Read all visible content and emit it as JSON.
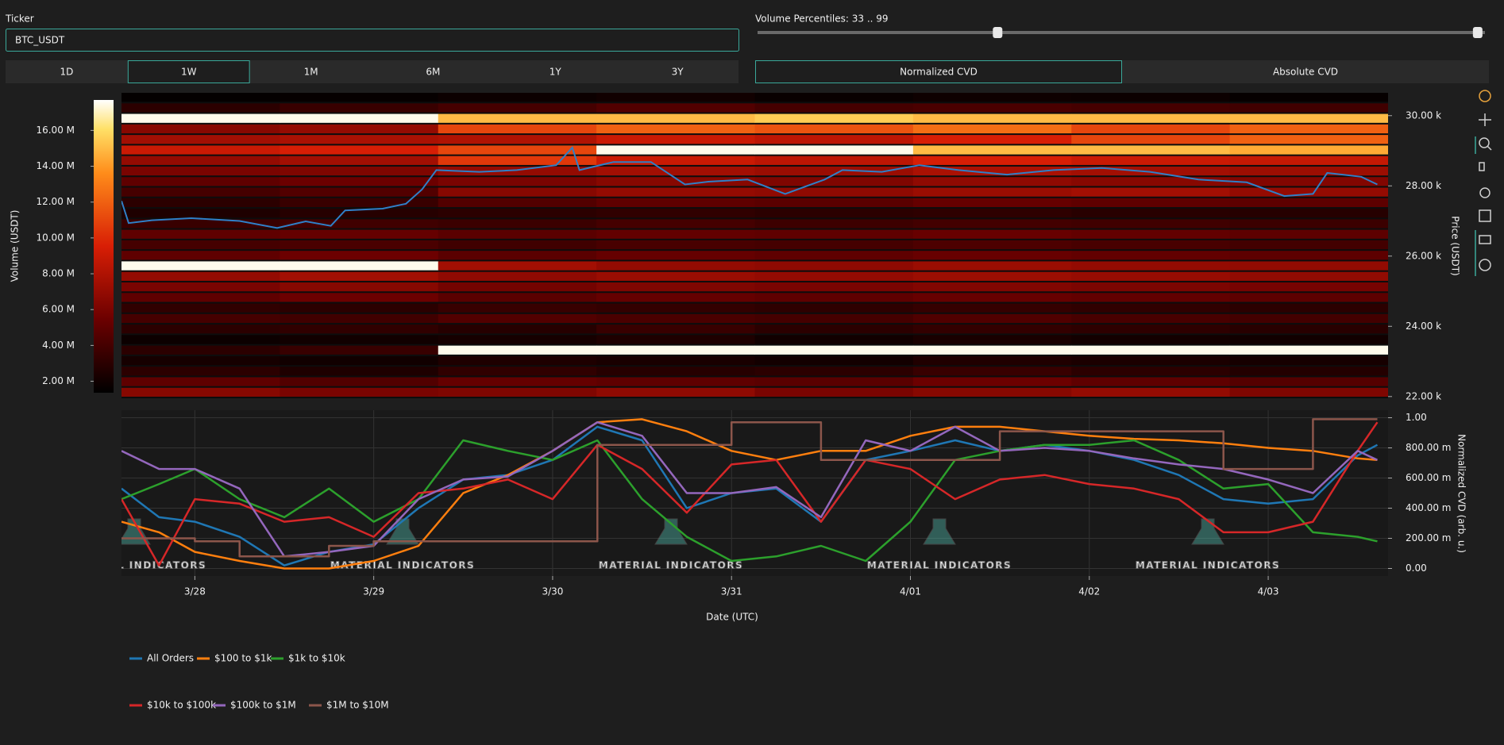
{
  "controls": {
    "ticker_label": "Ticker",
    "ticker_value": "BTC_USDT",
    "timeframes": [
      "1D",
      "1W",
      "1M",
      "6M",
      "1Y",
      "3Y"
    ],
    "active_timeframe_index": 1,
    "percentile_label": "Volume Percentiles: 33 .. 99",
    "percentile_slider": {
      "range": [
        0,
        100
      ],
      "values": [
        33,
        99
      ]
    },
    "cvd_tabs": [
      "Normalized CVD",
      "Absolute CVD"
    ],
    "active_cvd_tab_index": 0
  },
  "chart_data": [
    {
      "type": "heatmap",
      "x_bins": [
        -0.41,
        0.475,
        1.36,
        2.245,
        3.13,
        4.015,
        4.9,
        5.785,
        6.67
      ],
      "y_bins": [
        21950,
        22250,
        22550,
        22850,
        23150,
        23450,
        23750,
        24050,
        24350,
        24650,
        24950,
        25250,
        25550,
        25850,
        26150,
        26450,
        26750,
        27050,
        27350,
        27650,
        27950,
        28250,
        28550,
        28850,
        29150,
        29450,
        29750,
        30050,
        30350,
        30650
      ],
      "z": [
        [
          6500000,
          6000000,
          6200000,
          6800000,
          6000000,
          6500000,
          7000000,
          6200000
        ],
        [
          5000000,
          4500000,
          5200000,
          5000000,
          4800000,
          5500000,
          5000000,
          4600000
        ],
        [
          3000000,
          2500000,
          3200000,
          2800000,
          3000000,
          3500000,
          3000000,
          2700000
        ],
        [
          2200000,
          2000000,
          2500000,
          2300000,
          2100000,
          2600000,
          2400000,
          2200000
        ],
        [
          3000000,
          3500000,
          17500000,
          17500000,
          17500000,
          17500000,
          17500000,
          17500000
        ],
        [
          1800000,
          2000000,
          2200000,
          2500000,
          2000000,
          2300000,
          2100000,
          2000000
        ],
        [
          3000000,
          3200000,
          2800000,
          3500000,
          3000000,
          3300000,
          3100000,
          2900000
        ],
        [
          4000000,
          3800000,
          4500000,
          4200000,
          4000000,
          4400000,
          4100000,
          3900000
        ],
        [
          3200000,
          3000000,
          3500000,
          3300000,
          3100000,
          3400000,
          3200000,
          3000000
        ],
        [
          5000000,
          5500000,
          4800000,
          5200000,
          5000000,
          5300000,
          5100000,
          4900000
        ],
        [
          6000000,
          6500000,
          5800000,
          6200000,
          6000000,
          6300000,
          6100000,
          5900000
        ],
        [
          7000000,
          7500000,
          6800000,
          7200000,
          7000000,
          7300000,
          7100000,
          6900000
        ],
        [
          17500000,
          17500000,
          7500000,
          7000000,
          6800000,
          7200000,
          7000000,
          6900000
        ],
        [
          5000000,
          5500000,
          4800000,
          5200000,
          5000000,
          5300000,
          5100000,
          4900000
        ],
        [
          4000000,
          4200000,
          3800000,
          4100000,
          4000000,
          4300000,
          4100000,
          3900000
        ],
        [
          5000000,
          5200000,
          4800000,
          5100000,
          5000000,
          5300000,
          5100000,
          4900000
        ],
        [
          3500000,
          3800000,
          3600000,
          4000000,
          3700000,
          3900000,
          3800000,
          3600000
        ],
        [
          2500000,
          2800000,
          3000000,
          3200000,
          3000000,
          3100000,
          2900000,
          2800000
        ],
        [
          3000000,
          3500000,
          4500000,
          5000000,
          4800000,
          5200000,
          5000000,
          4900000
        ],
        [
          4000000,
          4500000,
          6500000,
          7000000,
          6800000,
          7200000,
          7500000,
          7000000
        ],
        [
          5000000,
          5500000,
          6000000,
          6500000,
          6200000,
          6800000,
          6500000,
          6300000
        ],
        [
          6000000,
          6200000,
          7000000,
          7500000,
          7200000,
          7800000,
          7500000,
          7300000
        ],
        [
          7000000,
          7500000,
          10500000,
          9000000,
          8500000,
          9500000,
          9000000,
          8800000
        ],
        [
          9000000,
          9500000,
          11000000,
          17500000,
          17500000,
          15000000,
          15000000,
          14500000
        ],
        [
          7500000,
          7800000,
          8000000,
          9000000,
          8500000,
          9500000,
          11000000,
          12000000
        ],
        [
          6500000,
          7000000,
          11000000,
          12000000,
          11500000,
          12500000,
          11000000,
          12000000
        ],
        [
          17500000,
          17500000,
          15000000,
          15000000,
          15500000,
          15000000,
          15000000,
          15000000
        ],
        [
          3000000,
          3500000,
          4000000,
          4500000,
          4000000,
          4200000,
          4000000,
          3800000
        ],
        [
          1500000,
          1600000,
          1800000,
          2000000,
          1700000,
          1900000,
          1800000,
          1600000
        ]
      ],
      "zlim": [
        1360000,
        17700000
      ],
      "zticks": [
        {
          "value": 2000000,
          "label": "2.00 M"
        },
        {
          "value": 4000000,
          "label": "4.00 M"
        },
        {
          "value": 6000000,
          "label": "6.00 M"
        },
        {
          "value": 8000000,
          "label": "8.00 M"
        },
        {
          "value": 10000000,
          "label": "10.00 M"
        },
        {
          "value": 12000000,
          "label": "12.00 M"
        },
        {
          "value": 14000000,
          "label": "14.00 M"
        },
        {
          "value": 16000000,
          "label": "16.00 M"
        }
      ],
      "colorscale": [
        [
          0,
          "#000000"
        ],
        [
          0.25,
          "#6b0000"
        ],
        [
          0.5,
          "#d81e05"
        ],
        [
          0.75,
          "#ff8c1a"
        ],
        [
          0.9,
          "#ffe066"
        ],
        [
          1,
          "#ffffff"
        ]
      ],
      "colorbar_title": "Volume (USDT)",
      "ylabel": "Price (USDT)",
      "xlim": [
        -0.41,
        6.67
      ],
      "ylim": [
        21950,
        30650
      ],
      "yticks": [
        {
          "value": 22000,
          "label": "22.00 k"
        },
        {
          "value": 24000,
          "label": "24.00 k"
        },
        {
          "value": 26000,
          "label": "26.00 k"
        },
        {
          "value": 28000,
          "label": "28.00 k"
        },
        {
          "value": 30000,
          "label": "30.00 k"
        }
      ],
      "price_line": {
        "color": "#2f80c8",
        "x": [
          -0.41,
          -0.37,
          -0.24,
          -0.02,
          0.25,
          0.46,
          0.62,
          0.76,
          0.84,
          1.05,
          1.18,
          1.27,
          1.35,
          1.59,
          1.8,
          2.02,
          2.11,
          2.15,
          2.34,
          2.55,
          2.74,
          2.87,
          3.09,
          3.3,
          3.52,
          3.62,
          3.84,
          4.05,
          4.27,
          4.54,
          4.8,
          5.07,
          5.34,
          5.61,
          5.88,
          6.09,
          6.25,
          6.33,
          6.52,
          6.61
        ],
        "values": [
          27570,
          26940,
          27020,
          27080,
          27000,
          26800,
          26990,
          26860,
          27300,
          27350,
          27490,
          27900,
          28450,
          28400,
          28450,
          28590,
          29090,
          28450,
          28680,
          28680,
          28040,
          28120,
          28180,
          27770,
          28180,
          28450,
          28400,
          28590,
          28450,
          28320,
          28450,
          28510,
          28400,
          28180,
          28100,
          27710,
          27770,
          28370,
          28260,
          28040
        ]
      }
    },
    {
      "type": "line",
      "x": [
        -0.41,
        -0.2,
        0,
        0.25,
        0.5,
        0.75,
        1,
        1.25,
        1.5,
        1.75,
        2,
        2.25,
        2.5,
        2.75,
        3,
        3.25,
        3.5,
        3.75,
        4,
        4.25,
        4.5,
        4.75,
        5,
        5.25,
        5.5,
        5.75,
        6,
        6.25,
        6.5,
        6.61
      ],
      "series": [
        {
          "name": "All Orders",
          "color": "#1f77b4",
          "values": [
            0.53,
            0.34,
            0.31,
            0.21,
            0.02,
            0.11,
            0.16,
            0.4,
            0.59,
            0.62,
            0.72,
            0.94,
            0.85,
            0.4,
            0.5,
            0.53,
            0.31,
            0.72,
            0.78,
            0.85,
            0.78,
            0.82,
            0.78,
            0.72,
            0.62,
            0.46,
            0.43,
            0.46,
            0.75,
            0.82
          ]
        },
        {
          "name": "$100 to $1k",
          "color": "#ff7f0e",
          "values": [
            0.31,
            0.24,
            0.11,
            0.05,
            0,
            0,
            0.05,
            0.15,
            0.5,
            0.62,
            0.78,
            0.97,
            0.99,
            0.91,
            0.78,
            0.72,
            0.78,
            0.78,
            0.88,
            0.94,
            0.94,
            0.91,
            0.88,
            0.86,
            0.85,
            0.83,
            0.8,
            0.78,
            0.73,
            0.72
          ]
        },
        {
          "name": "$1k to $10k",
          "color": "#2ca02c",
          "values": [
            0.46,
            0.56,
            0.66,
            0.46,
            0.34,
            0.53,
            0.31,
            0.46,
            0.85,
            0.78,
            0.72,
            0.85,
            0.46,
            0.21,
            0.05,
            0.08,
            0.15,
            0.05,
            0.31,
            0.72,
            0.78,
            0.82,
            0.82,
            0.85,
            0.72,
            0.53,
            0.56,
            0.24,
            0.21,
            0.18
          ]
        },
        {
          "name": "$10k to $100k",
          "color": "#d62728",
          "values": [
            0.46,
            0.02,
            0.46,
            0.43,
            0.31,
            0.34,
            0.21,
            0.5,
            0.53,
            0.59,
            0.46,
            0.82,
            0.66,
            0.37,
            0.69,
            0.72,
            0.31,
            0.72,
            0.66,
            0.46,
            0.59,
            0.62,
            0.56,
            0.53,
            0.46,
            0.24,
            0.24,
            0.31,
            0.78,
            0.97
          ]
        },
        {
          "name": "$100k to $1M",
          "color": "#9467bd",
          "values": [
            0.78,
            0.66,
            0.66,
            0.53,
            0.08,
            0.11,
            0.15,
            0.46,
            0.59,
            0.61,
            0.78,
            0.97,
            0.88,
            0.5,
            0.5,
            0.54,
            0.34,
            0.85,
            0.78,
            0.94,
            0.78,
            0.8,
            0.78,
            0.73,
            0.69,
            0.66,
            0.59,
            0.5,
            0.78,
            0.72
          ]
        },
        {
          "name": "$1M to $10M",
          "color": "#8c564b",
          "shape": "hv",
          "values": [
            0.2,
            0.2,
            0.18,
            0.08,
            0.08,
            0.15,
            0.18,
            0.18,
            0.18,
            0.18,
            0.18,
            0.82,
            0.82,
            0.82,
            0.97,
            0.97,
            0.72,
            0.72,
            0.72,
            0.72,
            0.91,
            0.91,
            0.91,
            0.91,
            0.91,
            0.66,
            0.66,
            0.99,
            0.99,
            0.99
          ]
        }
      ],
      "xlim": [
        -0.41,
        6.67
      ],
      "xticks": [
        {
          "value": 0,
          "label": "3/28"
        },
        {
          "value": 1,
          "label": "3/29"
        },
        {
          "value": 2,
          "label": "3/30"
        },
        {
          "value": 3,
          "label": "3/31"
        },
        {
          "value": 4,
          "label": "4/01"
        },
        {
          "value": 5,
          "label": "4/02"
        },
        {
          "value": 6,
          "label": "4/03"
        }
      ],
      "xlabel": "Date (UTC)",
      "ylim": [
        -0.05,
        1.05
      ],
      "yticks": [
        {
          "value": 0,
          "label": "0.00"
        },
        {
          "value": 0.2,
          "label": "200.00 m"
        },
        {
          "value": 0.4,
          "label": "400.00 m"
        },
        {
          "value": 0.6,
          "label": "600.00 m"
        },
        {
          "value": 0.8,
          "label": "800.00 m"
        },
        {
          "value": 1,
          "label": "1.00"
        }
      ],
      "ylabel": "Normalized CVD (arb. u.)",
      "grid": true,
      "legend": "bottom-left",
      "watermark": "MATERIAL INDICATORS"
    }
  ]
}
